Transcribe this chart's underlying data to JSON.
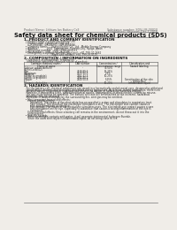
{
  "bg_color": "#f0ede8",
  "header_left": "Product Name: Lithium Ion Battery Cell",
  "header_right_line1": "Substance number: SDS-LIB-00010",
  "header_right_line2": "Established / Revision: Dec.7.2016",
  "title": "Safety data sheet for chemical products (SDS)",
  "section1_title": "1. PRODUCT AND COMPANY IDENTIFICATION",
  "section1_lines": [
    "  • Product name: Lithium Ion Battery Cell",
    "  • Product code: Cylindrical-type cell",
    "     (UR18650A), (UR18650L), (UR B6650A)",
    "  • Company name:     Sanyo Electric Co., Ltd.  Mobile Energy Company",
    "  • Address:           2001  Kaminaizen, Sumoto-City, Hyogo, Japan",
    "  • Telephone number:   +81-(799)-20-4111",
    "  • Fax number:    +81-(799)-26-4125",
    "  • Emergency telephone number (daytime): +81-799-20-2662",
    "                                   (Night and holiday): +81-799-26-4125"
  ],
  "section2_title": "2. COMPOSITION / INFORMATION ON INGREDIENTS",
  "section2_sub": "  • Substance or preparation: Preparation",
  "section2_sub2": "    Information about the chemical nature of product:",
  "table_col_labels_row1": [
    "Common chemical name /",
    "CAS number",
    "Concentration /",
    "Classification and"
  ],
  "table_col_labels_row2": [
    "Chemical name",
    "",
    "Concentration range",
    "hazard labeling"
  ],
  "table_rows": [
    [
      "Lithium cobalt tantalite",
      "-",
      "30-50%",
      ""
    ],
    [
      "(LiMn/Co/Ni)O2)",
      "",
      "",
      ""
    ],
    [
      "Iron",
      "7439-89-6",
      "15-25%",
      ""
    ],
    [
      "Aluminum",
      "7429-90-5",
      "2-5%",
      ""
    ],
    [
      "Graphite",
      "",
      "",
      ""
    ],
    [
      "(Flake or graphite)",
      "7782-42-5",
      "10-25%",
      ""
    ],
    [
      "(Artificial graphite)",
      "7782-44-2",
      "",
      ""
    ],
    [
      "Copper",
      "7440-50-8",
      "5-15%",
      "Sensitization of the skin\ngroup No.2"
    ],
    [
      "Organic electrolyte",
      "-",
      "10-20%",
      "Inflammable liquid"
    ]
  ],
  "section3_title": "3. HAZARDS IDENTIFICATION",
  "section3_para1": [
    "   For the battery cell, chemical substances are stored in a hermetically-sealed metal case, designed to withstand",
    "   temperature changes and pressures-generated during normal use. As a result, during normal use, there is no",
    "   physical danger of ignition or explosion and there is no danger of hazardous materials leakage.",
    "   However, if exposed to a fire, added mechanical shocks, decomposed, or when electric current by misuse,",
    "   the gas inside cannot be operated. The battery cell case will be breached at the extreme, hazardous",
    "   materials may be released.",
    "   Moreover, if heated strongly by the surrounding fire, smit gas may be emitted."
  ],
  "section3_bullet1_title": "  • Most important hazard and effects:",
  "section3_bullet1_lines": [
    "     Human health effects:",
    "        Inhalation: The steam of the electrolyte has an anesthetic action and stimulates to respiratory tract.",
    "        Skin contact: The steam of the electrolyte stimulates a skin. The electrolyte skin contact causes a",
    "        sore and stimulation on the skin.",
    "        Eye contact: The steam of the electrolyte stimulates eyes. The electrolyte eye contact causes a sore",
    "        and stimulation on the eye. Especially, a substance that causes a strong inflammation of the eye is",
    "        contained.",
    "     Environmental effects: Since a battery cell remains in the environment, do not throw out it into the",
    "     environment."
  ],
  "section3_bullet2_title": "  • Specific hazards:",
  "section3_bullet2_lines": [
    "     If the electrolyte contacts with water, it will generate detrimental hydrogen fluoride.",
    "     Since the used electrolyte is inflammable liquid, do not bring close to fire."
  ]
}
